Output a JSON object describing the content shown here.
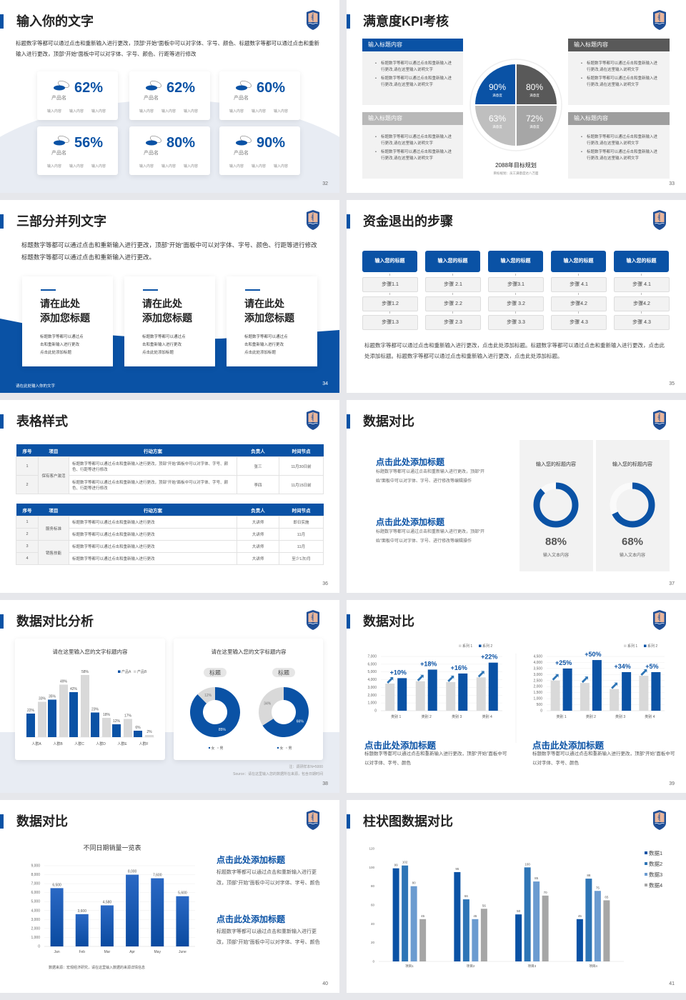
{
  "colors": {
    "brand": "#0a52a5",
    "dark_gray": "#595959",
    "light_gray": "#d9d9d9"
  },
  "slides": [
    {
      "title": "输入你的文字",
      "page": "32",
      "desc": "标题数字等都可以通过点击和重新输入进行更改，顶部“开始”面板中可以对字体、字号、颜色、标题数字等都可以通过点击和重新输入进行更改，顶部“开始”面板中可以对字体、字号、颜色、行距等进行修改",
      "cards": [
        {
          "pct": "62%",
          "name": "产品名",
          "labels": [
            "输入内容",
            "输入内容",
            "输入内容"
          ]
        },
        {
          "pct": "62%",
          "name": "产品名",
          "labels": [
            "输入内容",
            "输入内容",
            "输入内容"
          ]
        },
        {
          "pct": "60%",
          "name": "产品名",
          "labels": [
            "输入内容",
            "输入内容",
            "输入内容"
          ]
        },
        {
          "pct": "56%",
          "name": "产品名",
          "labels": [
            "输入内容",
            "输入内容",
            "输入内容"
          ]
        },
        {
          "pct": "80%",
          "name": "产品名",
          "labels": [
            "输入内容",
            "输入内容",
            "输入内容"
          ]
        },
        {
          "pct": "90%",
          "name": "产品名",
          "labels": [
            "输入内容",
            "输入内容",
            "输入内容"
          ]
        }
      ]
    },
    {
      "title": "满意度KPI考核",
      "page": "33",
      "boxes": [
        {
          "header": "输入标题内容",
          "bullets": [
            "标题数字等都可以通过点击和重新输入进行更改,请在这里输入说明文字",
            "标题数字等都可以通过点击和重新输入进行更改,请在这里输入说明文字"
          ]
        },
        {
          "header": "输入标题内容",
          "bullets": [
            "标题数字等都可以通过点击和重新输入进行更改,请在这里输入说明文字",
            "标题数字等都可以通过点击和重新输入进行更改,请在这里输入说明文字"
          ]
        },
        {
          "header": "输入标题内容",
          "bullets": [
            "标题数字等都可以通过点击和重新输入进行更改,请在这里输入说明文字",
            "标题数字等都可以通过点击和重新输入进行更改,请在这里输入说明文字"
          ]
        },
        {
          "header": "输入标题内容",
          "bullets": [
            "标题数字等都可以通过点击和重新输入进行更改,请在这里输入说明文字",
            "标题数字等都可以通过点击和重新输入进行更改,请在这里输入说明文字"
          ]
        }
      ],
      "quadrants": [
        {
          "value": "90%",
          "label": "满意度",
          "color": "#0a52a5"
        },
        {
          "value": "80%",
          "label": "满意度",
          "color": "#595959"
        },
        {
          "value": "63%",
          "label": "满意度",
          "color": "#bfbfbf"
        },
        {
          "value": "72%",
          "label": "满意度",
          "color": "#a6a6a6"
        }
      ],
      "caption": "2088年目标规划",
      "subcaption": "目标规划：员工满意度达八万面"
    },
    {
      "title": "三部分并列文字",
      "page": "34",
      "desc": "标题数字等都可以通过点击和重新输入进行更改，顶部“开始”面板中可以对字体、字号、颜色、行距等进行修改标题数字等都可以通过点击和重新输入进行更改。",
      "cards": [
        {
          "title": [
            "请在此处",
            "添加您标题"
          ],
          "text": [
            "标题数字等都可以通过点",
            "击和重新输入进行更改",
            "点击此处添加标题"
          ]
        },
        {
          "title": [
            "请在此处",
            "添加您标题"
          ],
          "text": [
            "标题数字等都可以通过点",
            "击和重新输入进行更改",
            "点击此处添加标题"
          ]
        },
        {
          "title": [
            "请在此处",
            "添加您标题"
          ],
          "text": [
            "标题数字等都可以通过点",
            "击和重新输入进行更改",
            "点击此处添加标题"
          ]
        }
      ],
      "footer": "请在此处输入你的文字"
    },
    {
      "title": "资金退出的步骤",
      "page": "35",
      "columns": [
        {
          "header": "输入您的标题",
          "steps": [
            "步骤1.1",
            "步骤1.2",
            "步骤1.3"
          ]
        },
        {
          "header": "输入您的标题",
          "steps": [
            "步骤 2.1",
            "步骤 2.2",
            "步骤 2.3"
          ]
        },
        {
          "header": "输入您的标题",
          "steps": [
            "步骤3.1",
            "步骤 3.2",
            "步骤 3.3"
          ]
        },
        {
          "header": "输入您的标题",
          "steps": [
            "步骤 4.1",
            "步骤4.2",
            "步骤 4.3"
          ]
        },
        {
          "header": "输入您的标题",
          "steps": [
            "步骤 4.1",
            "步骤4.2",
            "步骤 4.3"
          ]
        }
      ],
      "text": "标题数字等都可以通过点击和重新输入进行更改，点击此处添加标题。标题数字等都可以通过点击和重新输入进行更改，点击此处添加标题。标题数字等都可以通过点击和重新输入进行更改，点击此处添加标题。"
    },
    {
      "title": "表格样式",
      "page": "36",
      "headers": [
        "序号",
        "项目",
        "行动方案",
        "负责人",
        "时间节点"
      ],
      "tables": [
        [
          {
            "no": "1",
            "item": "保有客户激活",
            "span": 2,
            "plan": "标题数字等都可以通过点击和重新输入进行更改，顶部“开始”面板中可以对字体、字号、颜色、行距等进行修改",
            "owner": "张三",
            "time": "11月30日前"
          },
          {
            "no": "2",
            "plan": "标题数字等都可以通过点击和重新输入进行更改，顶部“开始”面板中可以对字体、字号、颜色、行距等进行修改",
            "owner": "李四",
            "time": "11月15日前"
          }
        ],
        [
          {
            "no": "1",
            "item": "服务标准",
            "span": 2,
            "plan": "标题数字等都可以通过点击和重新输入进行更改",
            "owner": "大讲师",
            "time": "即日实施"
          },
          {
            "no": "2",
            "plan": "标题数字等都可以通过点击和重新输入进行更改",
            "owner": "大讲师",
            "time": "11月"
          },
          {
            "no": "3",
            "item": "销售技能",
            "span": 2,
            "plan": "标题数字等都可以通过点击和重新输入进行更改",
            "owner": "大讲师",
            "time": "11月"
          },
          {
            "no": "4",
            "plan": "标题数字等都可以通过点击和重新输入进行更改",
            "owner": "大讲师",
            "time": "至少1次/月"
          }
        ]
      ]
    },
    {
      "title": "数据对比",
      "page": "37",
      "blocks": [
        {
          "title": "点击此处添加标题",
          "text": "标题数字等都可以通过点击和重新输入进行更改，顶部“开始”面板中可以对字体、字号、进行修改等编辑操作"
        },
        {
          "title": "点击此处添加标题",
          "text": "标题数字等都可以通过点击和重新输入进行更改，顶部“开始”面板中可以对字体、字号、进行修改等编辑操作"
        }
      ],
      "panels": [
        {
          "title": "输入您的标题内容",
          "value": 88,
          "pct": "88%",
          "label": "输入文本内容"
        },
        {
          "title": "输入您的标题内容",
          "value": 68,
          "pct": "68%",
          "label": "输入文本内容"
        }
      ]
    },
    {
      "title": "数据对比分析",
      "page": "38",
      "note": "注：调研样本N=5000",
      "source": "Source：请在这里输入您的数据所在来源，包含日期时间"
    },
    {
      "title": "数据对比",
      "page": "39",
      "blocks": [
        {
          "title": "点击此处添加标题",
          "text": "标题数字等都可以通过点击和重新输入进行更改，顶部“开始”面板中可以对字体、字号、颜色"
        },
        {
          "title": "点击此处添加标题",
          "text": "标题数字等都可以通过点击和重新输入进行更改，顶部“开始”面板中可以对字体、字号、颜色"
        }
      ]
    },
    {
      "title": "数据对比",
      "page": "40",
      "source": "数据来源：宏观经济研究，请在这里输入数据的来源详情信息",
      "blocks": [
        {
          "title": "点击此处添加标题",
          "text": "标题数字等都可以通过点击和重新输入进行更改，顶部“开始”面板中可以对字体、字号、颜色"
        },
        {
          "title": "点击此处添加标题",
          "text": "标题数字等都可以通过点击和重新输入进行更改，顶部“开始”面板中可以对字体、字号、颜色"
        }
      ]
    },
    {
      "title": "柱状图数据对比",
      "page": "41"
    }
  ],
  "chart_data": [
    {
      "type": "bar",
      "title": "请在这里输入您的文字标题内容",
      "categories": [
        "人群A",
        "人群B",
        "人群C",
        "人群D",
        "人群E",
        "人群F"
      ],
      "series": [
        {
          "name": "产品A",
          "values": [
            22,
            35,
            42,
            23,
            12,
            6
          ],
          "color": "#0a52a5"
        },
        {
          "name": "产品B",
          "values": [
            33,
            49,
            58,
            18,
            17,
            2
          ],
          "color": "#d9d9d9"
        }
      ],
      "unit": "%",
      "ylim": [
        0,
        60
      ],
      "legend": "top-right",
      "grid": false
    },
    {
      "type": "pie",
      "title": "请在这里输入您的文字标题内容",
      "legend_entries": [
        "女",
        "男"
      ],
      "colors": [
        "#0a52a5",
        "#d9d9d9"
      ],
      "donuts": [
        {
          "label": "标题",
          "values": [
            85,
            12
          ]
        },
        {
          "label": "标题",
          "values": [
            66,
            34
          ]
        }
      ]
    },
    {
      "type": "bar",
      "categories": [
        "类别 1",
        "类别 2",
        "类别 3",
        "类别 4"
      ],
      "series": [
        {
          "name": "系列 1",
          "values": [
            3500,
            3800,
            3700,
            4300
          ],
          "color": "#d9d9d9"
        },
        {
          "name": "系列 2",
          "values": [
            4200,
            5300,
            4800,
            6200
          ],
          "color": "#0a52a5"
        }
      ],
      "annotations": [
        "+10%",
        "+18%",
        "+16%",
        "+22%"
      ],
      "ylim": [
        0,
        7000
      ],
      "ytick_step": 1000,
      "legend": "top-right",
      "grid": true
    },
    {
      "type": "bar",
      "categories": [
        "类别 1",
        "类别 2",
        "类别 3",
        "类别 4"
      ],
      "series": [
        {
          "name": "系列 1",
          "values": [
            2500,
            2300,
            1800,
            2900
          ],
          "color": "#d9d9d9"
        },
        {
          "name": "系列 2",
          "values": [
            3500,
            4200,
            3200,
            3200
          ],
          "color": "#0a52a5"
        }
      ],
      "annotations": [
        "+25%",
        "+50%",
        "+34%",
        "+5%"
      ],
      "ylim": [
        0,
        4500
      ],
      "ytick_step": 500,
      "legend": "top-right",
      "grid": true
    },
    {
      "type": "bar",
      "title": "不同日期销量一览表",
      "categories": [
        "Jan",
        "Feb",
        "Mar",
        "Apr",
        "May",
        "June"
      ],
      "series": [
        {
          "values": [
            6500,
            3600,
            4580,
            8000,
            7600,
            5600
          ],
          "color": "#1a5cb5"
        }
      ],
      "ylim": [
        0,
        9000
      ],
      "ytick_step": 1000,
      "grid": true
    },
    {
      "type": "bar",
      "categories": [
        "项目1",
        "项目2",
        "项目3",
        "项目4"
      ],
      "series": [
        {
          "name": "数据1",
          "values": [
            99,
            95,
            50,
            45
          ],
          "color": "#0a52a5"
        },
        {
          "name": "数据2",
          "values": [
            102,
            66,
            100,
            88
          ],
          "color": "#2e75b6"
        },
        {
          "name": "数据3",
          "values": [
            80,
            45,
            85,
            75
          ],
          "color": "#6b9bd0"
        },
        {
          "name": "数据4",
          "values": [
            45,
            56,
            70,
            65
          ],
          "color": "#a6a6a6"
        }
      ],
      "ylim": [
        0,
        120
      ],
      "ytick_step": 20,
      "legend": "right",
      "grid": false
    }
  ]
}
